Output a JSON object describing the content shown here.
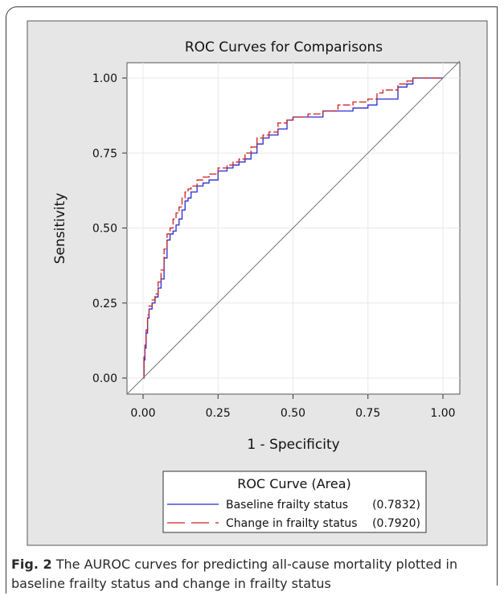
{
  "chart_data": {
    "type": "line",
    "title": "ROC Curves for Comparisons",
    "xlabel": "1 - Specificity",
    "ylabel": "Sensitivity",
    "xlim": [
      0,
      1
    ],
    "ylim": [
      0,
      1
    ],
    "xticks": [
      "0.00",
      "0.25",
      "0.50",
      "0.75",
      "1.00"
    ],
    "yticks": [
      "0.00",
      "0.25",
      "0.50",
      "0.75",
      "1.00"
    ],
    "grid": true,
    "legend": {
      "title": "ROC Curve (Area)",
      "placement": "bottom",
      "entries": [
        {
          "label": "Baseline frailty status",
          "area": "(0.7832)"
        },
        {
          "label": "Change in frailty status",
          "area": "(0.7920)"
        }
      ]
    },
    "series": [
      {
        "name": "Baseline frailty status",
        "color": "#2a2ad0",
        "dash": "solid",
        "x": [
          0,
          0.003,
          0.006,
          0.01,
          0.015,
          0.02,
          0.03,
          0.04,
          0.05,
          0.06,
          0.07,
          0.08,
          0.09,
          0.1,
          0.11,
          0.12,
          0.13,
          0.14,
          0.15,
          0.16,
          0.18,
          0.2,
          0.22,
          0.25,
          0.28,
          0.3,
          0.32,
          0.34,
          0.36,
          0.38,
          0.4,
          0.42,
          0.45,
          0.48,
          0.5,
          0.55,
          0.6,
          0.65,
          0.7,
          0.75,
          0.78,
          0.8,
          0.85,
          0.88,
          0.9,
          0.95,
          1.0
        ],
        "y": [
          0,
          0.06,
          0.1,
          0.15,
          0.2,
          0.23,
          0.25,
          0.27,
          0.3,
          0.33,
          0.4,
          0.46,
          0.48,
          0.49,
          0.51,
          0.53,
          0.56,
          0.59,
          0.6,
          0.62,
          0.64,
          0.65,
          0.66,
          0.69,
          0.7,
          0.71,
          0.72,
          0.73,
          0.75,
          0.78,
          0.8,
          0.81,
          0.83,
          0.86,
          0.87,
          0.87,
          0.89,
          0.89,
          0.9,
          0.91,
          0.93,
          0.93,
          0.97,
          0.98,
          1.0,
          1.0,
          1.0
        ]
      },
      {
        "name": "Change in frailty status",
        "color": "#cc2020",
        "dash": "dashed",
        "x": [
          0,
          0.003,
          0.006,
          0.01,
          0.015,
          0.02,
          0.03,
          0.04,
          0.05,
          0.06,
          0.07,
          0.08,
          0.09,
          0.1,
          0.11,
          0.12,
          0.13,
          0.14,
          0.15,
          0.16,
          0.18,
          0.2,
          0.22,
          0.25,
          0.28,
          0.3,
          0.32,
          0.34,
          0.36,
          0.38,
          0.4,
          0.42,
          0.45,
          0.48,
          0.5,
          0.55,
          0.6,
          0.65,
          0.7,
          0.75,
          0.78,
          0.8,
          0.85,
          0.88,
          0.9,
          0.95,
          1.0
        ],
        "y": [
          0,
          0.07,
          0.11,
          0.16,
          0.21,
          0.24,
          0.26,
          0.28,
          0.32,
          0.36,
          0.43,
          0.48,
          0.5,
          0.53,
          0.55,
          0.57,
          0.6,
          0.62,
          0.63,
          0.64,
          0.66,
          0.67,
          0.68,
          0.7,
          0.71,
          0.72,
          0.73,
          0.75,
          0.77,
          0.8,
          0.81,
          0.82,
          0.85,
          0.86,
          0.87,
          0.88,
          0.89,
          0.91,
          0.92,
          0.93,
          0.95,
          0.96,
          0.98,
          0.99,
          1.0,
          1.0,
          1.0
        ]
      },
      {
        "name": "",
        "color": "#777777",
        "dash": "solid",
        "x": [
          0,
          1
        ],
        "y": [
          0,
          1
        ]
      }
    ]
  },
  "caption": {
    "label": "Fig. 2",
    "text": " The AUROC curves for predicting all-cause mortality plotted in baseline frailty status and change in frailty status"
  }
}
